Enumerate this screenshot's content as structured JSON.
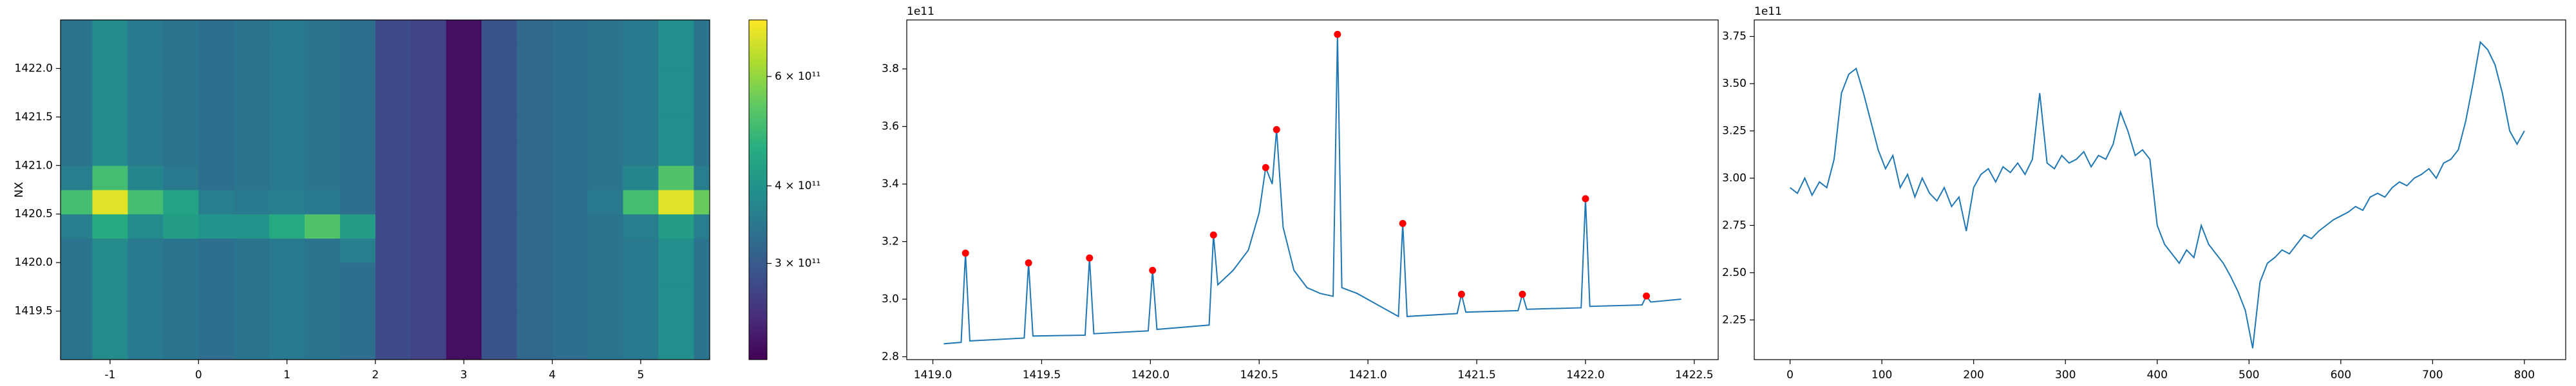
{
  "chart_data": [
    {
      "type": "heatmap",
      "ylabel": "NX",
      "colormap": "viridis",
      "x": [
        -1.4,
        -1.0,
        -0.6,
        -0.2,
        0.2,
        0.6,
        1.0,
        1.4,
        1.8,
        2.2,
        2.6,
        3.0,
        3.4,
        3.8,
        4.2,
        4.6,
        5.0,
        5.4,
        5.8
      ],
      "y": [
        1419.125,
        1419.375,
        1419.625,
        1419.875,
        1420.125,
        1420.375,
        1420.625,
        1420.875,
        1421.125,
        1421.375,
        1421.625,
        1421.875,
        1422.125,
        1422.375
      ],
      "z": [
        [
          340000000000.0,
          380000000000.0,
          350000000000.0,
          340000000000.0,
          330000000000.0,
          340000000000.0,
          350000000000.0,
          340000000000.0,
          330000000000.0,
          280000000000.0,
          270000000000.0,
          220000000000.0,
          290000000000.0,
          320000000000.0,
          330000000000.0,
          340000000000.0,
          350000000000.0,
          390000000000.0,
          340000000000.0
        ],
        [
          340000000000.0,
          380000000000.0,
          350000000000.0,
          340000000000.0,
          330000000000.0,
          340000000000.0,
          350000000000.0,
          340000000000.0,
          330000000000.0,
          280000000000.0,
          270000000000.0,
          220000000000.0,
          290000000000.0,
          320000000000.0,
          330000000000.0,
          340000000000.0,
          350000000000.0,
          390000000000.0,
          340000000000.0
        ],
        [
          340000000000.0,
          380000000000.0,
          350000000000.0,
          340000000000.0,
          330000000000.0,
          340000000000.0,
          350000000000.0,
          340000000000.0,
          330000000000.0,
          280000000000.0,
          270000000000.0,
          220000000000.0,
          290000000000.0,
          320000000000.0,
          330000000000.0,
          340000000000.0,
          350000000000.0,
          390000000000.0,
          340000000000.0
        ],
        [
          340000000000.0,
          380000000000.0,
          350000000000.0,
          340000000000.0,
          330000000000.0,
          340000000000.0,
          350000000000.0,
          340000000000.0,
          330000000000.0,
          280000000000.0,
          270000000000.0,
          220000000000.0,
          290000000000.0,
          320000000000.0,
          330000000000.0,
          340000000000.0,
          350000000000.0,
          390000000000.0,
          340000000000.0
        ],
        [
          340000000000.0,
          380000000000.0,
          350000000000.0,
          340000000000.0,
          330000000000.0,
          340000000000.0,
          350000000000.0,
          340000000000.0,
          360000000000.0,
          280000000000.0,
          270000000000.0,
          220000000000.0,
          290000000000.0,
          320000000000.0,
          330000000000.0,
          340000000000.0,
          350000000000.0,
          390000000000.0,
          340000000000.0
        ],
        [
          360000000000.0,
          450000000000.0,
          380000000000.0,
          420000000000.0,
          400000000000.0,
          400000000000.0,
          450000000000.0,
          520000000000.0,
          420000000000.0,
          280000000000.0,
          270000000000.0,
          220000000000.0,
          290000000000.0,
          320000000000.0,
          330000000000.0,
          340000000000.0,
          360000000000.0,
          420000000000.0,
          360000000000.0
        ],
        [
          500000000000.0,
          700000000000.0,
          500000000000.0,
          430000000000.0,
          360000000000.0,
          350000000000.0,
          360000000000.0,
          350000000000.0,
          330000000000.0,
          280000000000.0,
          270000000000.0,
          220000000000.0,
          290000000000.0,
          320000000000.0,
          330000000000.0,
          350000000000.0,
          500000000000.0,
          700000000000.0,
          550000000000.0
        ],
        [
          360000000000.0,
          500000000000.0,
          370000000000.0,
          350000000000.0,
          330000000000.0,
          340000000000.0,
          350000000000.0,
          340000000000.0,
          330000000000.0,
          280000000000.0,
          270000000000.0,
          220000000000.0,
          290000000000.0,
          320000000000.0,
          330000000000.0,
          340000000000.0,
          370000000000.0,
          520000000000.0,
          360000000000.0
        ],
        [
          340000000000.0,
          380000000000.0,
          350000000000.0,
          340000000000.0,
          330000000000.0,
          340000000000.0,
          350000000000.0,
          340000000000.0,
          330000000000.0,
          280000000000.0,
          270000000000.0,
          220000000000.0,
          290000000000.0,
          320000000000.0,
          330000000000.0,
          340000000000.0,
          350000000000.0,
          390000000000.0,
          340000000000.0
        ],
        [
          340000000000.0,
          380000000000.0,
          350000000000.0,
          340000000000.0,
          330000000000.0,
          340000000000.0,
          350000000000.0,
          340000000000.0,
          330000000000.0,
          280000000000.0,
          270000000000.0,
          220000000000.0,
          290000000000.0,
          320000000000.0,
          330000000000.0,
          340000000000.0,
          350000000000.0,
          390000000000.0,
          340000000000.0
        ],
        [
          340000000000.0,
          380000000000.0,
          350000000000.0,
          340000000000.0,
          330000000000.0,
          340000000000.0,
          350000000000.0,
          340000000000.0,
          330000000000.0,
          280000000000.0,
          270000000000.0,
          220000000000.0,
          290000000000.0,
          320000000000.0,
          330000000000.0,
          340000000000.0,
          350000000000.0,
          390000000000.0,
          340000000000.0
        ],
        [
          340000000000.0,
          380000000000.0,
          350000000000.0,
          340000000000.0,
          330000000000.0,
          340000000000.0,
          350000000000.0,
          340000000000.0,
          330000000000.0,
          280000000000.0,
          270000000000.0,
          220000000000.0,
          290000000000.0,
          320000000000.0,
          330000000000.0,
          340000000000.0,
          350000000000.0,
          390000000000.0,
          340000000000.0
        ],
        [
          340000000000.0,
          380000000000.0,
          350000000000.0,
          340000000000.0,
          330000000000.0,
          340000000000.0,
          350000000000.0,
          340000000000.0,
          330000000000.0,
          280000000000.0,
          270000000000.0,
          220000000000.0,
          290000000000.0,
          320000000000.0,
          330000000000.0,
          340000000000.0,
          350000000000.0,
          390000000000.0,
          340000000000.0
        ],
        [
          340000000000.0,
          380000000000.0,
          350000000000.0,
          340000000000.0,
          330000000000.0,
          340000000000.0,
          350000000000.0,
          340000000000.0,
          330000000000.0,
          280000000000.0,
          270000000000.0,
          220000000000.0,
          290000000000.0,
          320000000000.0,
          330000000000.0,
          340000000000.0,
          350000000000.0,
          390000000000.0,
          340000000000.0
        ]
      ],
      "xlim": [
        -1.56,
        5.78
      ],
      "ylim": [
        1419.0,
        1422.5
      ],
      "xticks": [
        -1,
        0,
        1,
        2,
        3,
        4,
        5
      ],
      "yticks": [
        1419.5,
        {
          "value": 1420,
          "label": "1420.0"
        },
        1420.5,
        {
          "value": 1421,
          "label": "1421.0"
        },
        1421.5,
        {
          "value": 1422,
          "label": "1422.0"
        }
      ],
      "colorbar": {
        "lim": [
          210000000000.0,
          740000000000.0
        ],
        "log": true,
        "ticks": [
          {
            "value": 300000000000.0,
            "label": "3 × 10¹¹"
          },
          {
            "value": 400000000000.0,
            "label": "4 × 10¹¹"
          },
          {
            "value": 600000000000.0,
            "label": "6 × 10¹¹"
          }
        ]
      }
    },
    {
      "type": "line",
      "y_offset_label": "1e11",
      "x": [
        1419.05,
        1419.13,
        1419.15,
        1419.17,
        1419.42,
        1419.44,
        1419.46,
        1419.7,
        1419.72,
        1419.74,
        1419.99,
        1420.01,
        1420.03,
        1420.27,
        1420.29,
        1420.31,
        1420.38,
        1420.45,
        1420.5,
        1420.53,
        1420.56,
        1420.58,
        1420.61,
        1420.66,
        1420.72,
        1420.78,
        1420.84,
        1420.86,
        1420.88,
        1420.95,
        1421.14,
        1421.16,
        1421.18,
        1421.41,
        1421.43,
        1421.45,
        1421.69,
        1421.71,
        1421.73,
        1421.98,
        1422.0,
        1422.02,
        1422.26,
        1422.28,
        1422.3,
        1422.44
      ],
      "series": [
        {
          "color": "#1f77b4",
          "values": [
            2.845,
            2.85,
            3.16,
            2.855,
            2.865,
            3.126,
            2.872,
            2.875,
            3.143,
            2.88,
            2.89,
            3.1,
            2.895,
            2.91,
            3.223,
            3.05,
            3.1,
            3.17,
            3.3,
            3.457,
            3.4,
            3.589,
            3.25,
            3.1,
            3.04,
            3.02,
            3.01,
            3.92,
            3.04,
            3.02,
            2.94,
            3.263,
            2.94,
            2.95,
            3.017,
            2.955,
            2.96,
            3.017,
            2.965,
            2.97,
            3.349,
            2.975,
            2.98,
            3.011,
            2.99,
            3.0
          ]
        }
      ],
      "peaks": {
        "color": "red",
        "x": [
          1419.15,
          1419.44,
          1419.72,
          1420.01,
          1420.29,
          1420.53,
          1420.58,
          1420.86,
          1421.16,
          1421.43,
          1421.71,
          1422.0,
          1422.28
        ],
        "values": [
          3.16,
          3.126,
          3.143,
          3.1,
          3.223,
          3.457,
          3.589,
          3.92,
          3.263,
          3.017,
          3.017,
          3.349,
          3.011
        ]
      },
      "xlim": [
        1418.88,
        1422.61
      ],
      "ylim": [
        2.79,
        3.97
      ],
      "xticks": [
        {
          "value": 1419,
          "label": "1419.0"
        },
        1419.5,
        {
          "value": 1420,
          "label": "1420.0"
        },
        1420.5,
        {
          "value": 1421,
          "label": "1421.0"
        },
        1421.5,
        {
          "value": 1422,
          "label": "1422.0"
        },
        1422.5
      ],
      "yticks": [
        2.8,
        {
          "value": 3,
          "label": "3.0"
        },
        3.2,
        3.4,
        3.6,
        3.8
      ]
    },
    {
      "type": "line",
      "y_offset_label": "1e11",
      "x": [
        0,
        8,
        16,
        24,
        32,
        40,
        48,
        56,
        64,
        72,
        80,
        88,
        96,
        104,
        112,
        120,
        128,
        136,
        144,
        152,
        160,
        168,
        176,
        184,
        192,
        200,
        208,
        216,
        224,
        232,
        240,
        248,
        256,
        264,
        272,
        280,
        288,
        296,
        304,
        312,
        320,
        328,
        336,
        344,
        352,
        360,
        368,
        376,
        384,
        392,
        400,
        408,
        416,
        424,
        432,
        440,
        448,
        456,
        464,
        472,
        480,
        488,
        496,
        504,
        512,
        520,
        528,
        536,
        544,
        552,
        560,
        568,
        576,
        584,
        592,
        600,
        608,
        616,
        624,
        632,
        640,
        648,
        656,
        664,
        672,
        680,
        688,
        696,
        704,
        712,
        720,
        728,
        736,
        744,
        752,
        760,
        768,
        776,
        784,
        792,
        800
      ],
      "series": [
        {
          "color": "#1f77b4",
          "values": [
            2.95,
            2.92,
            3.0,
            2.91,
            2.98,
            2.95,
            3.1,
            3.45,
            3.55,
            3.58,
            3.45,
            3.3,
            3.15,
            3.05,
            3.12,
            2.95,
            3.02,
            2.9,
            3.0,
            2.92,
            2.88,
            2.95,
            2.85,
            2.9,
            2.72,
            2.95,
            3.02,
            3.05,
            2.98,
            3.06,
            3.03,
            3.08,
            3.02,
            3.1,
            3.45,
            3.08,
            3.05,
            3.12,
            3.08,
            3.1,
            3.14,
            3.06,
            3.12,
            3.1,
            3.18,
            3.35,
            3.25,
            3.12,
            3.15,
            3.1,
            2.75,
            2.65,
            2.6,
            2.55,
            2.62,
            2.58,
            2.75,
            2.65,
            2.6,
            2.55,
            2.48,
            2.4,
            2.3,
            2.1,
            2.45,
            2.55,
            2.58,
            2.62,
            2.6,
            2.65,
            2.7,
            2.68,
            2.72,
            2.75,
            2.78,
            2.8,
            2.82,
            2.85,
            2.83,
            2.9,
            2.92,
            2.9,
            2.95,
            2.98,
            2.96,
            3.0,
            3.02,
            3.05,
            3.0,
            3.08,
            3.1,
            3.15,
            3.3,
            3.5,
            3.72,
            3.68,
            3.6,
            3.45,
            3.25,
            3.18,
            3.25
          ]
        }
      ],
      "xlim": [
        -39,
        845
      ],
      "ylim": [
        2.04,
        3.837
      ],
      "xticks": [
        0,
        100,
        200,
        300,
        400,
        500,
        600,
        700,
        800
      ],
      "yticks": [
        2.25,
        {
          "value": 2.5,
          "label": "2.50"
        },
        2.75,
        {
          "value": 3,
          "label": "3.00"
        },
        3.25,
        {
          "value": 3.5,
          "label": "3.50"
        },
        3.75
      ]
    }
  ]
}
